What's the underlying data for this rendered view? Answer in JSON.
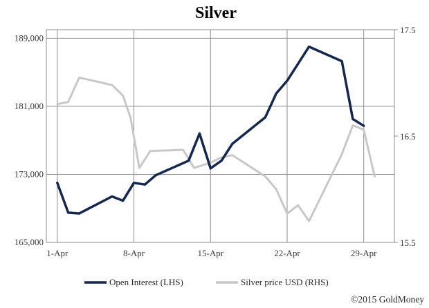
{
  "chart_data": {
    "type": "line",
    "title": "Silver",
    "credit": "©2015 GoldMoney",
    "x_ticks": [
      "1-Apr",
      "8-Apr",
      "15-Apr",
      "22-Apr",
      "29-Apr"
    ],
    "x_tick_days": [
      1,
      8,
      15,
      22,
      29
    ],
    "x_range_days": [
      0,
      31.8
    ],
    "y_left": {
      "ticks": [
        "165,000",
        "173,000",
        "181,000",
        "189,000"
      ],
      "tick_values": [
        165000,
        173000,
        181000,
        189000
      ],
      "range": [
        165000,
        190000
      ]
    },
    "y_right": {
      "ticks": [
        "15.5",
        "16.5",
        "17.5"
      ],
      "tick_values": [
        15.5,
        16.5,
        17.5
      ],
      "range": [
        15.5,
        17.5
      ]
    },
    "grid": true,
    "legend_position": "bottom",
    "series": [
      {
        "name": "Open Interest (LHS)",
        "axis": "left",
        "color": "#14274e",
        "points": [
          [
            1,
            172000
          ],
          [
            2,
            168500
          ],
          [
            3,
            168400
          ],
          [
            6,
            170400
          ],
          [
            7,
            169900
          ],
          [
            8,
            172000
          ],
          [
            9,
            171800
          ],
          [
            10,
            172900
          ],
          [
            13,
            174600
          ],
          [
            14,
            177800
          ],
          [
            15,
            173700
          ],
          [
            16,
            174600
          ],
          [
            17,
            176600
          ],
          [
            20,
            179700
          ],
          [
            21,
            182500
          ],
          [
            22,
            184000
          ],
          [
            24,
            188000
          ],
          [
            27,
            186300
          ],
          [
            28,
            179500
          ],
          [
            29,
            178700
          ]
        ]
      },
      {
        "name": "Silver price USD (RHS)",
        "axis": "right",
        "color": "#c8c8c8",
        "points": [
          [
            1,
            16.8
          ],
          [
            2,
            16.82
          ],
          [
            3,
            17.05
          ],
          [
            6,
            16.98
          ],
          [
            7,
            16.88
          ],
          [
            7.7,
            16.67
          ],
          [
            8.5,
            16.2
          ],
          [
            9.5,
            16.36
          ],
          [
            12.5,
            16.37
          ],
          [
            13.5,
            16.2
          ],
          [
            15,
            16.25
          ],
          [
            16,
            16.3
          ],
          [
            17,
            16.32
          ],
          [
            20,
            16.12
          ],
          [
            21,
            16.0
          ],
          [
            22,
            15.77
          ],
          [
            23,
            15.85
          ],
          [
            24,
            15.7
          ],
          [
            27,
            16.33
          ],
          [
            28,
            16.6
          ],
          [
            29,
            16.56
          ],
          [
            30,
            16.12
          ]
        ]
      }
    ]
  }
}
